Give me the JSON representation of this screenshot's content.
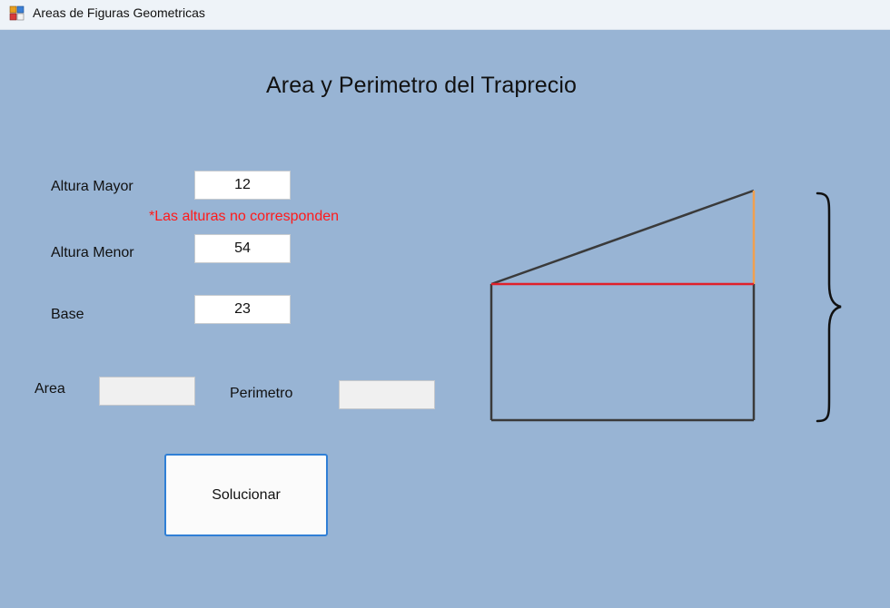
{
  "window": {
    "title": "Areas de Figuras Geometricas",
    "icon": "forms-app-icon"
  },
  "page": {
    "title": "Area y Perimetro del Traprecio"
  },
  "form": {
    "altura_mayor": {
      "label": "Altura Mayor",
      "value": "12"
    },
    "altura_menor": {
      "label": "Altura Menor",
      "value": "54"
    },
    "base": {
      "label": "Base",
      "value": "23"
    },
    "area": {
      "label": "Area",
      "value": ""
    },
    "perimetro": {
      "label": "Perimetro",
      "value": ""
    },
    "error": "*Las alturas no corresponden"
  },
  "actions": {
    "solve_label": "Solucionar"
  },
  "colors": {
    "background": "#98b4d4",
    "error_text": "#ff1a1a",
    "outline": "#3a3a3a",
    "divider_line": "#e0202a",
    "height_marker": "#f0a050",
    "button_border": "#2f7fd6"
  }
}
